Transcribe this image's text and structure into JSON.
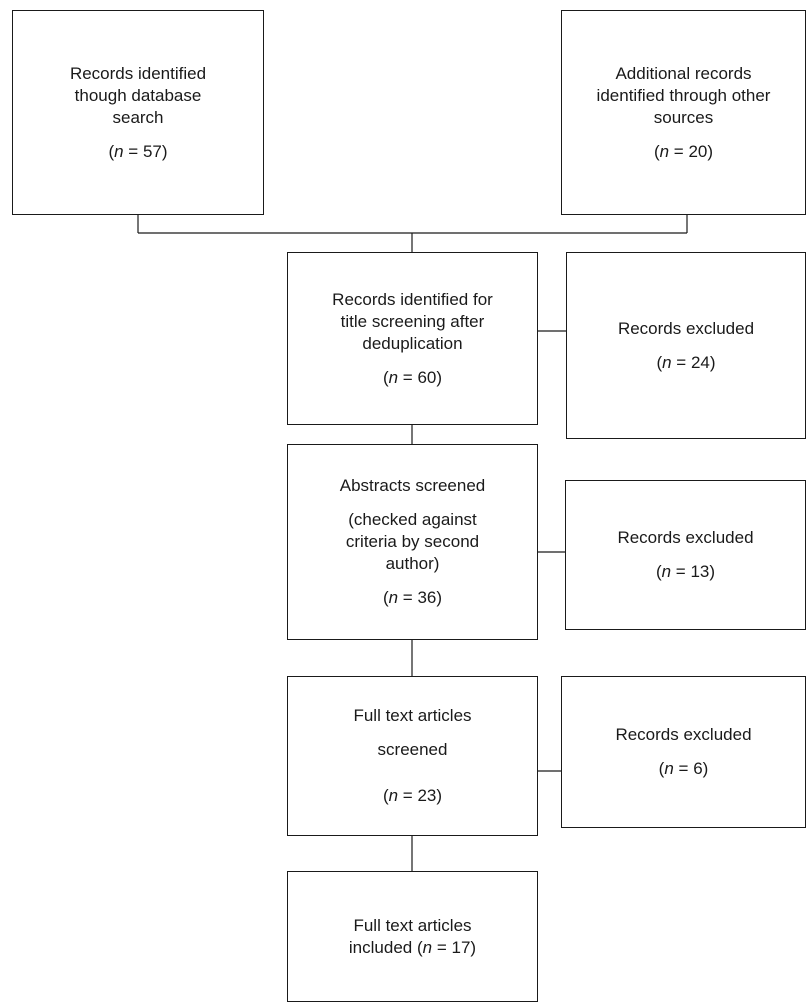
{
  "boxes": {
    "database_search": {
      "lines": [
        "Records identified",
        "though database",
        "search"
      ],
      "count": {
        "var": "n",
        "eq": " = ",
        "value": "57",
        "prefix": "(",
        "suffix": ")"
      }
    },
    "other_sources": {
      "lines": [
        "Additional records",
        "identified through other",
        "sources"
      ],
      "count": {
        "var": "n",
        "eq": " = ",
        "value": "20",
        "prefix": "(",
        "suffix": ")"
      }
    },
    "title_screening": {
      "lines": [
        "Records identified for",
        "title screening after",
        "deduplication"
      ],
      "count": {
        "var": "n",
        "eq": " = ",
        "value": "60",
        "prefix": "(",
        "suffix": ")"
      }
    },
    "excluded_1": {
      "lines": [
        "Records excluded"
      ],
      "count": {
        "var": "n",
        "eq": " = ",
        "value": "24",
        "prefix": "(",
        "suffix": ")"
      }
    },
    "abstracts": {
      "heading": "Abstracts screened",
      "lines": [
        "(checked against",
        "criteria by second",
        "author)"
      ],
      "count": {
        "var": "n",
        "eq": " = ",
        "value": "36",
        "prefix": "(",
        "suffix": ")"
      }
    },
    "excluded_2": {
      "lines": [
        "Records excluded"
      ],
      "count": {
        "var": "n",
        "eq": " = ",
        "value": "13",
        "prefix": "(",
        "suffix": ")"
      }
    },
    "full_text_screened": {
      "heading": "Full text articles",
      "lines": [
        "screened"
      ],
      "count": {
        "var": "n",
        "eq": " = ",
        "value": "23",
        "prefix": "(",
        "suffix": ")"
      }
    },
    "excluded_3": {
      "lines": [
        "Records excluded"
      ],
      "count": {
        "var": "n",
        "eq": " = ",
        "value": "6",
        "prefix": "(",
        "suffix": ")"
      }
    },
    "included": {
      "lines": [
        "Full text articles"
      ],
      "inline_count": {
        "label": "included ",
        "var": "n",
        "eq": " = ",
        "value": "17",
        "prefix": "(",
        "suffix": ")"
      }
    }
  }
}
